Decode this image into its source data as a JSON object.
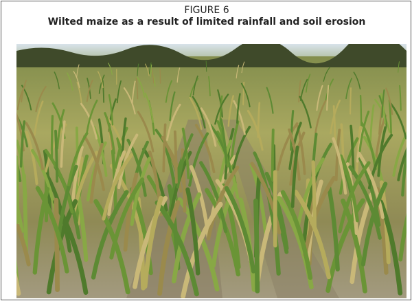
{
  "figure": {
    "label": "FIGURE 6",
    "caption": "Wilted maize as a result of limited rainfall and soil erosion"
  }
}
